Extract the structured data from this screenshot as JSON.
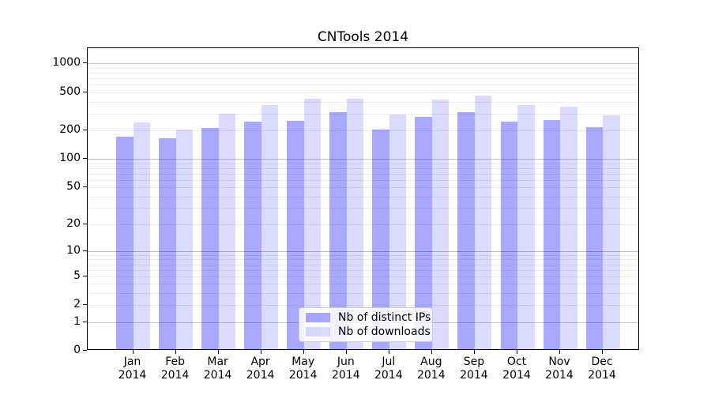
{
  "figure": {
    "background": "#ffffff",
    "spine_color": "#000000"
  },
  "chart_data": {
    "type": "bar",
    "title": "CNTools 2014",
    "xlabel": "",
    "ylabel": "",
    "categories": [
      "Jan 2014",
      "Feb 2014",
      "Mar 2014",
      "Apr 2014",
      "May 2014",
      "Jun 2014",
      "Jul 2014",
      "Aug 2014",
      "Sep 2014",
      "Oct 2014",
      "Nov 2014",
      "Dec 2014"
    ],
    "series": [
      {
        "name": "Nb of distinct IPs",
        "color": "rgba(0,0,255,0.34)",
        "color_hex_on_white": "#a8a8ff",
        "values": [
          170,
          165,
          210,
          245,
          250,
          310,
          205,
          275,
          310,
          245,
          255,
          215
        ]
      },
      {
        "name": "Nb of downloads",
        "color": "rgba(0,0,255,0.14)",
        "color_hex_on_white": "#dbdbff",
        "values": [
          240,
          205,
          300,
          370,
          430,
          425,
          295,
          420,
          465,
          370,
          355,
          285
        ]
      }
    ],
    "yscale": "symlog-like (position proportional to log10(value+1))",
    "yticks": [
      0,
      1,
      2,
      5,
      10,
      20,
      50,
      100,
      200,
      500,
      1000
    ],
    "ylim": [
      0,
      1430
    ],
    "grid": {
      "orientation": "horizontal",
      "major_at": [
        1,
        10,
        100,
        1000
      ],
      "major_color": "#c6c6c6",
      "minor_color": "#ebebeb"
    },
    "legend": {
      "position": "lower center",
      "entries": [
        "Nb of distinct IPs",
        "Nb of downloads"
      ]
    }
  }
}
